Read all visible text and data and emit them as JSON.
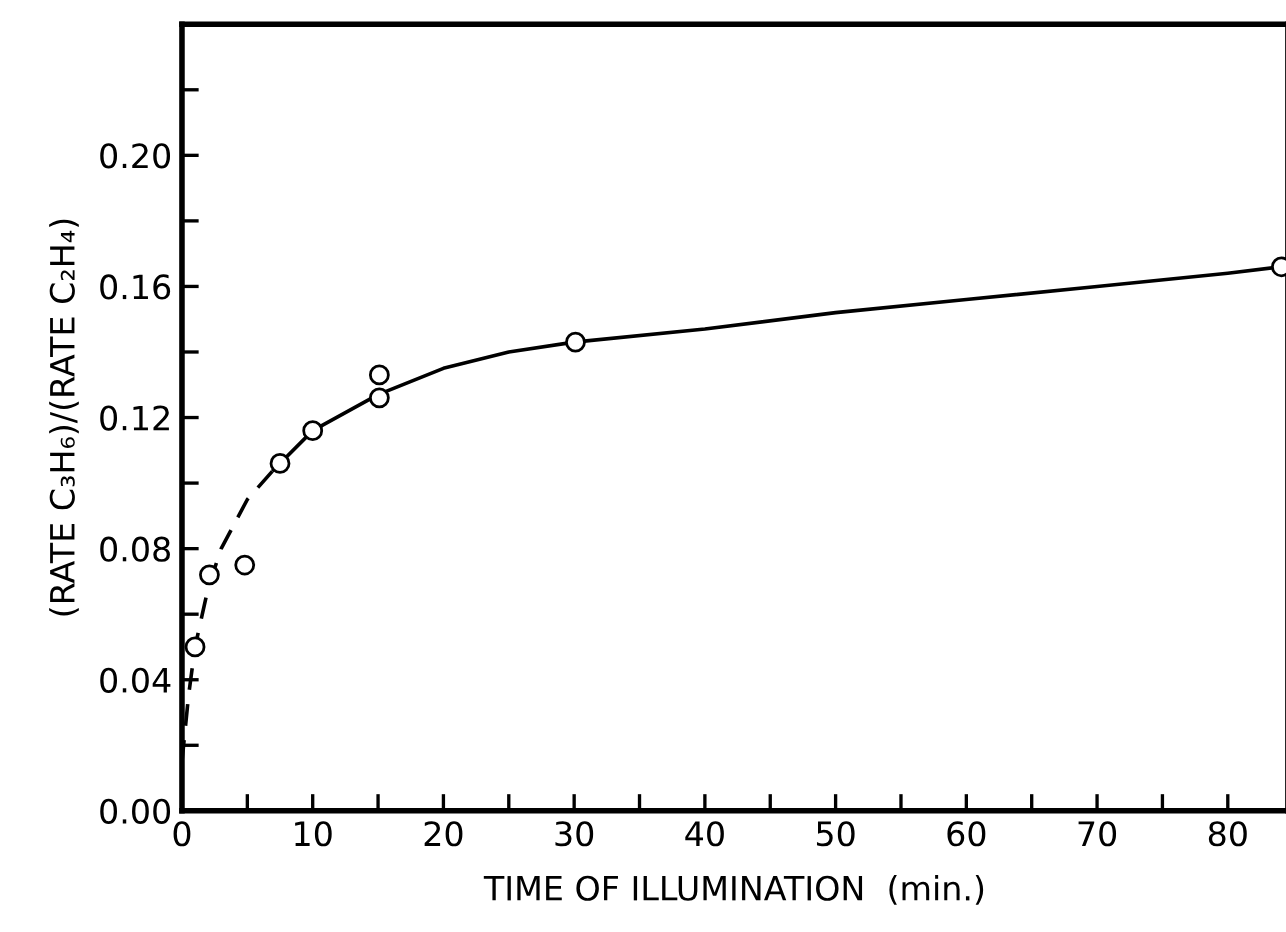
{
  "chart_data": {
    "type": "scatter",
    "xlabel": "TIME OF ILLUMINATION  (min.)",
    "ylabel": "(RATE C₃H₆)/(RATE C₂H₄)",
    "series": [
      {
        "color": "#000000",
        "marker": "circle",
        "x": [
          1,
          2.1,
          4.8,
          7.5,
          10,
          15.1,
          15.1,
          30.1,
          84.1
        ],
        "values": [
          0.05,
          0.072,
          0.075,
          0.106,
          0.116,
          0.133,
          0.126,
          0.143,
          0.166
        ]
      },
      {
        "type": "line",
        "color": "#000000",
        "marker": "none",
        "line_style": "dashed",
        "x": [
          0,
          0.5,
          1,
          2,
          3,
          5,
          7
        ],
        "values": [
          0.015,
          0.035,
          0.05,
          0.068,
          0.08,
          0.095,
          0.104
        ]
      },
      {
        "type": "line",
        "color": "#000000",
        "marker": "none",
        "line_style": "solid",
        "x": [
          7,
          10,
          15,
          20,
          25,
          30,
          40,
          50,
          60,
          70,
          80,
          84.1
        ],
        "values": [
          0.104,
          0.116,
          0.127,
          0.135,
          0.14,
          0.143,
          0.147,
          0.152,
          0.156,
          0.16,
          0.164,
          0.166
        ]
      }
    ],
    "xlim": [
      0,
      84.6
    ],
    "ylim": [
      0,
      0.24
    ],
    "xticks": [
      0,
      {
        "value": 5,
        "label": null
      },
      10,
      {
        "value": 15,
        "label": null
      },
      20,
      {
        "value": 25,
        "label": null
      },
      30,
      {
        "value": 35,
        "label": null
      },
      40,
      {
        "value": 45,
        "label": null
      },
      50,
      {
        "value": 55,
        "label": null
      },
      60,
      {
        "value": 65,
        "label": null
      },
      70,
      {
        "value": 75,
        "label": null
      },
      80
    ],
    "yticks": [
      {
        "value": 0,
        "label": "0.00"
      },
      {
        "value": 0.02,
        "label": null
      },
      {
        "value": 0.04,
        "label": "0.04"
      },
      {
        "value": 0.06,
        "label": null
      },
      {
        "value": 0.08,
        "label": "0.08"
      },
      {
        "value": 0.1,
        "label": null
      },
      {
        "value": 0.12,
        "label": "0.12"
      },
      {
        "value": 0.14,
        "label": null
      },
      {
        "value": 0.16,
        "label": "0.16"
      },
      {
        "value": 0.18,
        "label": null
      },
      {
        "value": 0.2,
        "label": "0.20"
      },
      {
        "value": 0.22,
        "label": null
      }
    ],
    "grid": false,
    "legend": false
  }
}
